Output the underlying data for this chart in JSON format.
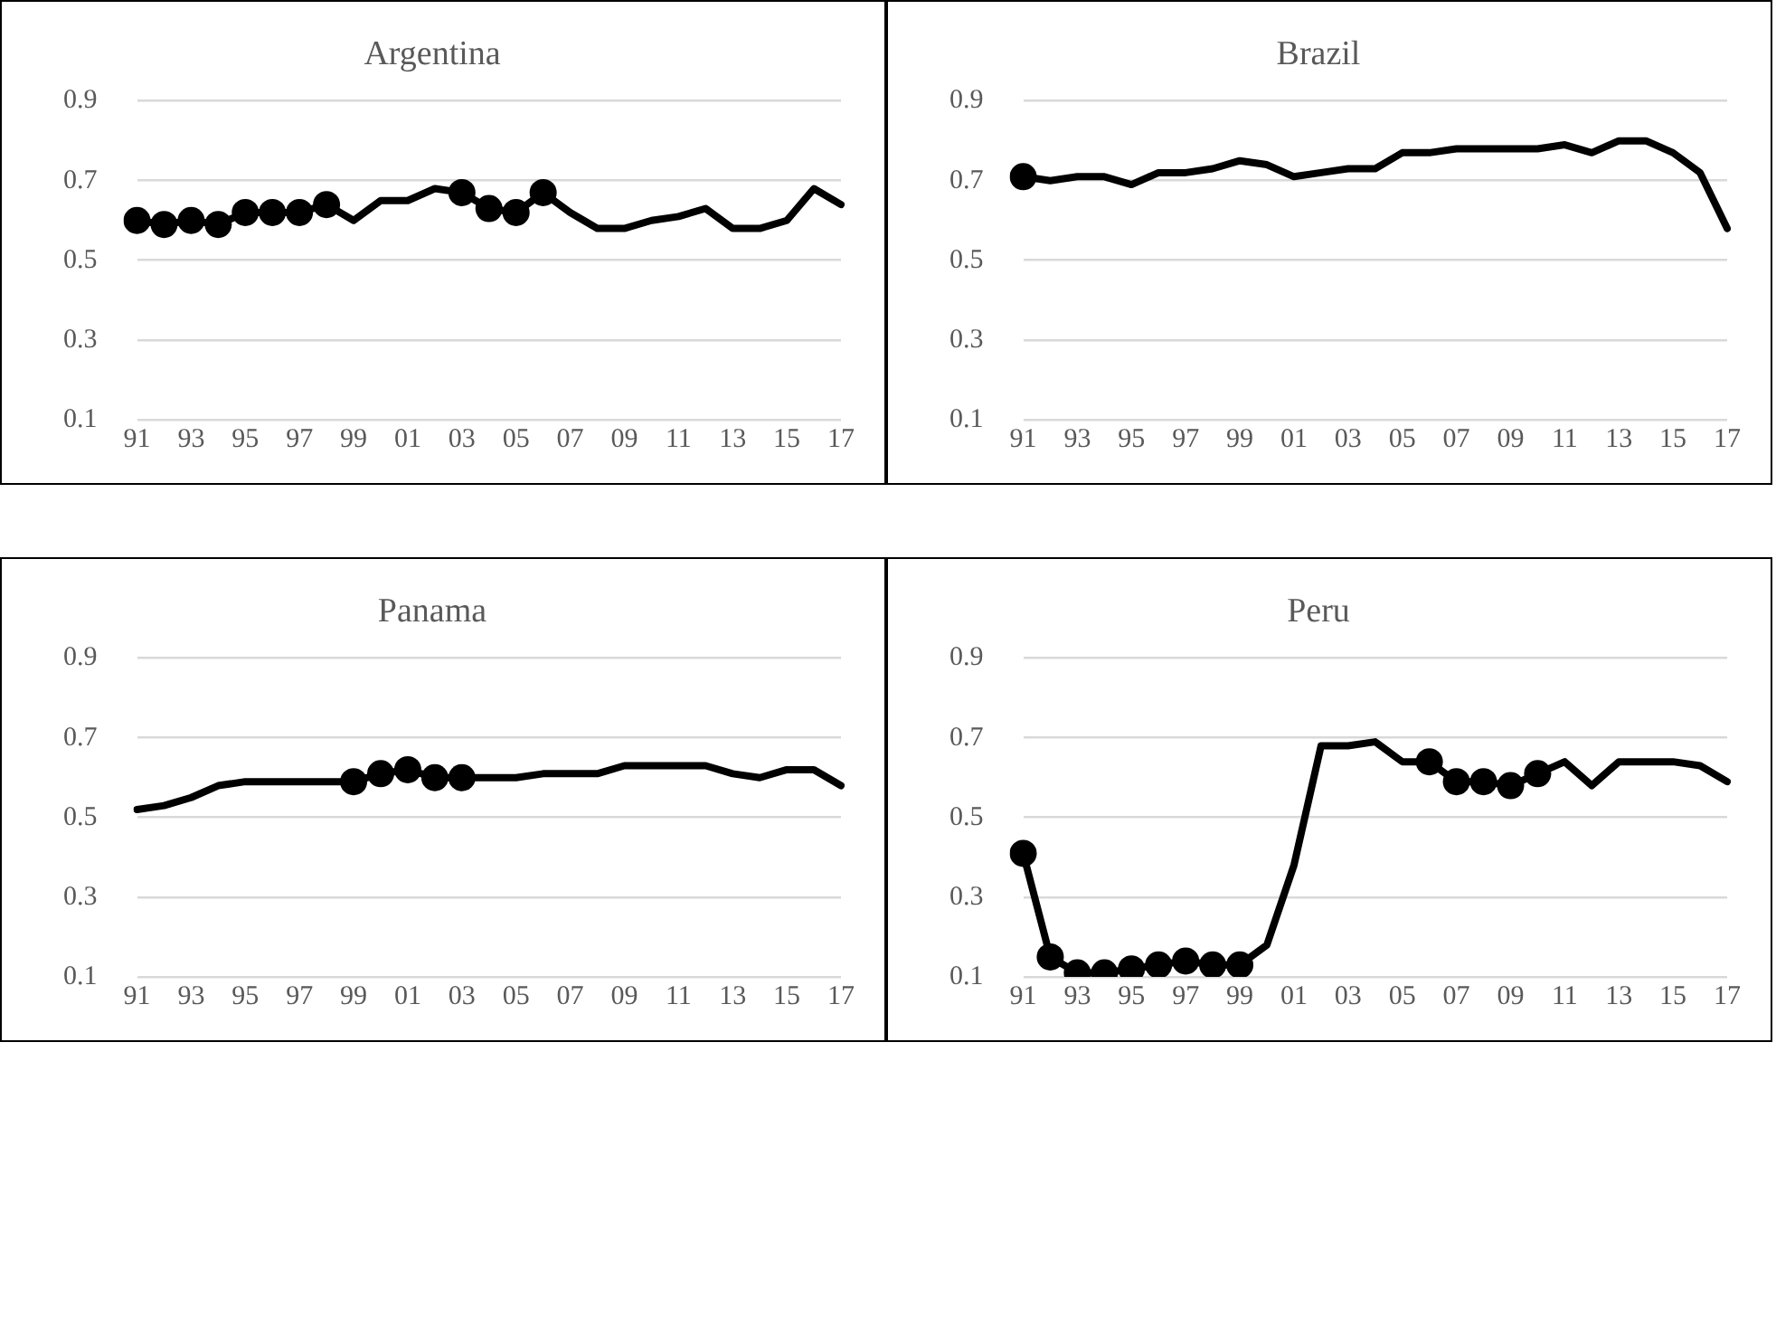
{
  "chart_data": [
    {
      "type": "line",
      "title": "Argentina",
      "categories": [
        "91",
        null,
        "93",
        null,
        "95",
        null,
        "97",
        null,
        "99",
        null,
        "01",
        null,
        "03",
        null,
        "05",
        null,
        "07",
        null,
        "09",
        null,
        "11",
        null,
        "13",
        null,
        "15",
        null,
        "17"
      ],
      "ylim": [
        0.1,
        0.9
      ],
      "yticks": [
        0.1,
        0.3,
        0.5,
        0.7,
        0.9
      ],
      "grid": "y",
      "legend": false,
      "series": [
        {
          "type": "line",
          "color": "#000000",
          "marker": "none",
          "values": [
            0.6,
            0.59,
            0.6,
            0.59,
            0.62,
            0.62,
            0.62,
            0.64,
            0.6,
            0.65,
            0.65,
            0.68,
            0.67,
            0.63,
            0.62,
            0.67,
            0.62,
            0.58,
            0.58,
            0.6,
            0.61,
            0.63,
            0.58,
            0.58,
            0.6,
            0.68,
            0.64
          ]
        },
        {
          "type": "scatter",
          "color": "#000000",
          "marker": "circle",
          "values": [
            0.6,
            0.59,
            0.6,
            0.59,
            0.62,
            0.62,
            0.62,
            0.64,
            null,
            null,
            null,
            null,
            0.67,
            0.63,
            0.62,
            0.67,
            null,
            null,
            null,
            null,
            null,
            null,
            null,
            null,
            null,
            null,
            null
          ]
        }
      ]
    },
    {
      "type": "line",
      "title": "Brazil",
      "categories": [
        "91",
        null,
        "93",
        null,
        "95",
        null,
        "97",
        null,
        "99",
        null,
        "01",
        null,
        "03",
        null,
        "05",
        null,
        "07",
        null,
        "09",
        null,
        "11",
        null,
        "13",
        null,
        "15",
        null,
        "17"
      ],
      "ylim": [
        0.1,
        0.9
      ],
      "yticks": [
        0.1,
        0.3,
        0.5,
        0.7,
        0.9
      ],
      "grid": "y",
      "legend": false,
      "series": [
        {
          "type": "line",
          "color": "#000000",
          "marker": "none",
          "values": [
            0.71,
            0.7,
            0.71,
            0.71,
            0.69,
            0.72,
            0.72,
            0.73,
            0.75,
            0.74,
            0.71,
            0.72,
            0.73,
            0.73,
            0.77,
            0.77,
            0.78,
            0.78,
            0.78,
            0.78,
            0.79,
            0.77,
            0.8,
            0.8,
            0.77,
            0.72,
            0.58
          ]
        },
        {
          "type": "scatter",
          "color": "#000000",
          "marker": "circle",
          "values": [
            0.71,
            null,
            null,
            null,
            null,
            null,
            null,
            null,
            null,
            null,
            null,
            null,
            null,
            null,
            null,
            null,
            null,
            null,
            null,
            null,
            null,
            null,
            null,
            null,
            null,
            null,
            null
          ]
        }
      ]
    },
    {
      "type": "line",
      "title": "Panama",
      "categories": [
        "91",
        null,
        "93",
        null,
        "95",
        null,
        "97",
        null,
        "99",
        null,
        "01",
        null,
        "03",
        null,
        "05",
        null,
        "07",
        null,
        "09",
        null,
        "11",
        null,
        "13",
        null,
        "15",
        null,
        "17"
      ],
      "ylim": [
        0.1,
        0.9
      ],
      "yticks": [
        0.1,
        0.3,
        0.5,
        0.7,
        0.9
      ],
      "grid": "y",
      "legend": false,
      "series": [
        {
          "type": "line",
          "color": "#000000",
          "marker": "none",
          "values": [
            0.52,
            0.53,
            0.55,
            0.58,
            0.59,
            0.59,
            0.59,
            0.59,
            0.59,
            0.61,
            0.62,
            0.6,
            0.6,
            0.6,
            0.6,
            0.61,
            0.61,
            0.61,
            0.63,
            0.63,
            0.63,
            0.63,
            0.61,
            0.6,
            0.62,
            0.62,
            0.58
          ]
        },
        {
          "type": "scatter",
          "color": "#000000",
          "marker": "circle",
          "values": [
            null,
            null,
            null,
            null,
            null,
            null,
            null,
            null,
            0.59,
            0.61,
            0.62,
            0.6,
            0.6,
            null,
            null,
            null,
            null,
            null,
            null,
            null,
            null,
            null,
            null,
            null,
            null,
            null,
            null
          ]
        }
      ]
    },
    {
      "type": "line",
      "title": "Peru",
      "categories": [
        "91",
        null,
        "93",
        null,
        "95",
        null,
        "97",
        null,
        "99",
        null,
        "01",
        null,
        "03",
        null,
        "05",
        null,
        "07",
        null,
        "09",
        null,
        "11",
        null,
        "13",
        null,
        "15",
        null,
        "17"
      ],
      "ylim": [
        0.1,
        0.9
      ],
      "yticks": [
        0.1,
        0.3,
        0.5,
        0.7,
        0.9
      ],
      "grid": "y",
      "legend": false,
      "series": [
        {
          "type": "line",
          "color": "#000000",
          "marker": "none",
          "values": [
            0.41,
            0.15,
            0.11,
            0.11,
            0.12,
            0.13,
            0.14,
            0.13,
            0.13,
            0.18,
            0.38,
            0.68,
            0.68,
            0.69,
            0.64,
            0.64,
            0.59,
            0.59,
            0.58,
            0.61,
            0.64,
            0.58,
            0.64,
            0.64,
            0.64,
            0.63,
            0.59
          ]
        },
        {
          "type": "scatter",
          "color": "#000000",
          "marker": "circle",
          "values": [
            0.41,
            0.15,
            0.11,
            0.11,
            0.12,
            0.13,
            0.14,
            0.13,
            0.13,
            null,
            null,
            null,
            null,
            null,
            null,
            0.64,
            0.59,
            0.59,
            0.58,
            0.61,
            null,
            null,
            null,
            null,
            null,
            null,
            null
          ]
        }
      ]
    }
  ]
}
